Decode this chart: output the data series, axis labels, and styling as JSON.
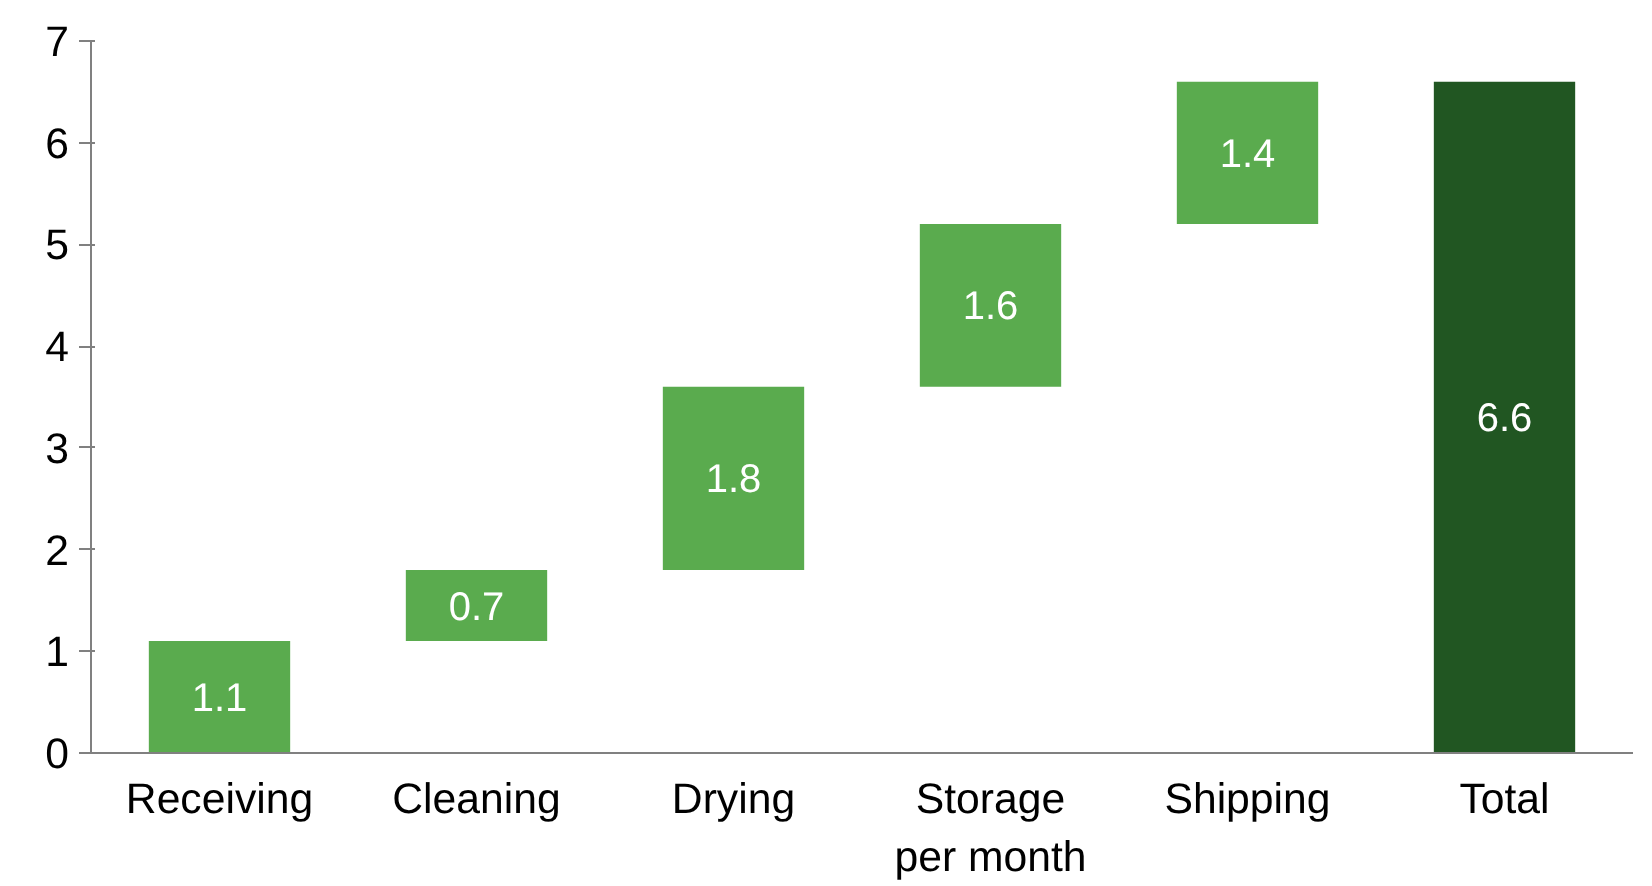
{
  "chart_data": {
    "type": "bar",
    "categories": [
      "Receiving",
      "Cleaning",
      "Drying",
      "Storage per month",
      "Shipping",
      "Total"
    ],
    "values": [
      1.1,
      0.7,
      1.8,
      1.6,
      1.4,
      6.6
    ],
    "base": [
      0,
      1.1,
      1.8,
      3.6,
      5.2,
      0
    ],
    "colors": [
      "#5aab4e",
      "#5aab4e",
      "#5aab4e",
      "#5aab4e",
      "#5aab4e",
      "#215622"
    ],
    "ylim": [
      0,
      7
    ],
    "yticks": [
      0,
      1,
      2,
      3,
      4,
      5,
      6,
      7
    ],
    "data_labels": true
  }
}
